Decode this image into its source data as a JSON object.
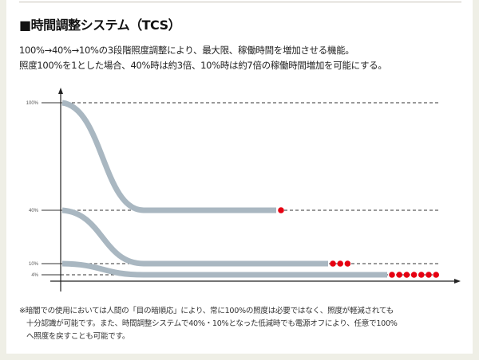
{
  "heading": {
    "title": "■時間調整システム（TCS）"
  },
  "description": {
    "line1": "100%→40%→10%の3段階照度調整により、最大限、稼働時間を増加させる機能。",
    "line2": "照度100%を1とした場合、40%時は約3倍、10%時は約7倍の稼働時間増加を可能にする。"
  },
  "note": {
    "line1": "※暗闇での使用においては人間の「目の暗順応」により、常に100%の照度は必要ではなく、照度が軽減されても",
    "line2": "十分認識が可能です。また、時間調整システムで40%・10%となった低減時でも電源オフにより、任意で100%",
    "line3": "へ照度を戻すことも可能です。"
  },
  "chart_data": {
    "type": "line",
    "title": "",
    "xlabel": "",
    "ylabel": "",
    "y_ticks": [
      {
        "value": 100,
        "label": "100%"
      },
      {
        "value": 40,
        "label": "40%"
      },
      {
        "value": 10,
        "label": "10%"
      },
      {
        "value": 4,
        "label": "4%"
      }
    ],
    "grid": "dashed lines at tick levels",
    "series": [
      {
        "start": 100,
        "end": 40,
        "relative_runtime": 1,
        "dots": 1
      },
      {
        "start": 40,
        "end": 10,
        "relative_runtime": 3,
        "dots": 3
      },
      {
        "start": 10,
        "end": 4,
        "relative_runtime": 7,
        "dots": 7
      }
    ],
    "colors": {
      "curve": "#a9b7c1",
      "dot": "#e60012",
      "axis": "#222222"
    }
  }
}
